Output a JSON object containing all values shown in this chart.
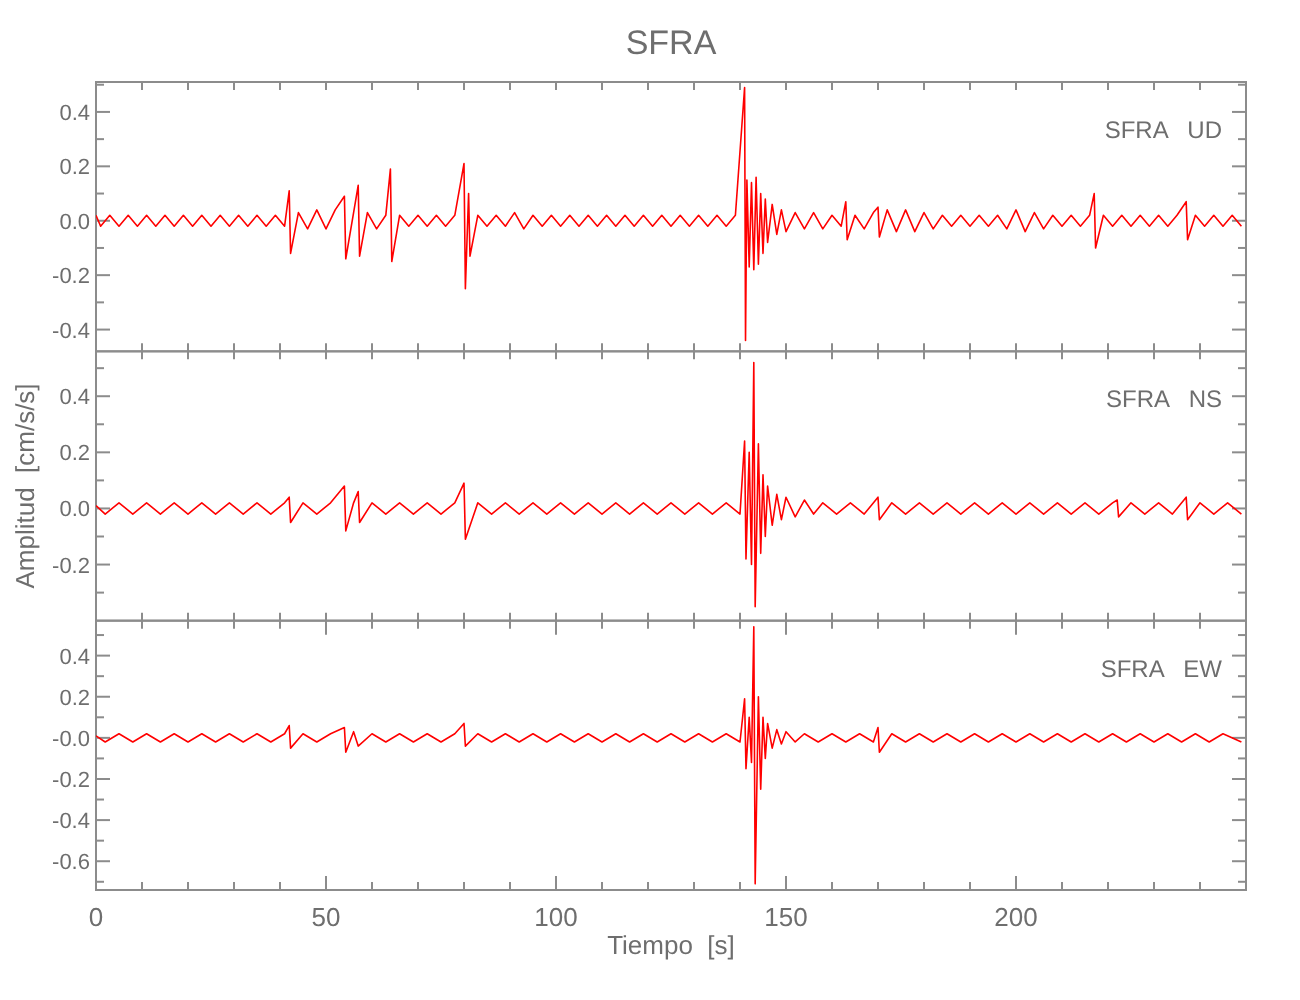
{
  "chart_data": [
    {
      "type": "line",
      "title": "SFRA",
      "annotations": [
        "SFRA   UD"
      ],
      "tick_labels": "y",
      "xlim": [
        0,
        250
      ],
      "ylim": [
        -0.48,
        0.51
      ],
      "xticks": [
        {
          "value": 0,
          "label": null
        },
        {
          "value": 10,
          "label": null
        },
        {
          "value": 20,
          "label": null
        },
        {
          "value": 30,
          "label": null
        },
        {
          "value": 40,
          "label": null
        },
        {
          "value": 50,
          "label": null
        },
        {
          "value": 60,
          "label": null
        },
        {
          "value": 70,
          "label": null
        },
        {
          "value": 80,
          "label": null
        },
        {
          "value": 90,
          "label": null
        },
        {
          "value": 100,
          "label": null
        },
        {
          "value": 110,
          "label": null
        },
        {
          "value": 120,
          "label": null
        },
        {
          "value": 130,
          "label": null
        },
        {
          "value": 140,
          "label": null
        },
        {
          "value": 150,
          "label": null
        },
        {
          "value": 160,
          "label": null
        },
        {
          "value": 170,
          "label": null
        },
        {
          "value": 180,
          "label": null
        },
        {
          "value": 190,
          "label": null
        },
        {
          "value": 200,
          "label": null
        },
        {
          "value": 210,
          "label": null
        },
        {
          "value": 220,
          "label": null
        },
        {
          "value": 230,
          "label": null
        },
        {
          "value": 240,
          "label": null
        }
      ],
      "yticks": [
        {
          "value": -0.4,
          "label": "-0.4"
        },
        {
          "value": -0.3,
          "label": null
        },
        {
          "value": -0.2,
          "label": "-0.2"
        },
        {
          "value": -0.1,
          "label": null
        },
        {
          "value": 0,
          "label": "0.0"
        },
        {
          "value": 0.1,
          "label": null
        },
        {
          "value": 0.2,
          "label": "0.2"
        },
        {
          "value": 0.3,
          "label": null
        },
        {
          "value": 0.4,
          "label": "0.4"
        },
        {
          "value": 0.5,
          "label": null
        }
      ],
      "x": [
        0,
        1,
        3,
        5,
        7,
        9,
        11,
        13,
        15,
        17,
        19,
        21,
        23,
        25,
        27,
        29,
        31,
        33,
        35,
        37,
        39,
        41,
        42,
        42.3,
        44,
        46,
        48,
        50,
        52,
        54,
        54.3,
        56,
        57,
        57.3,
        59,
        61,
        63,
        64,
        64.3,
        66,
        68,
        70,
        72,
        74,
        76,
        78,
        80,
        80.3,
        81,
        81.3,
        83,
        85,
        87,
        89,
        91,
        93,
        95,
        97,
        99,
        101,
        103,
        105,
        107,
        109,
        111,
        113,
        115,
        117,
        119,
        121,
        123,
        125,
        127,
        129,
        131,
        133,
        135,
        137,
        139,
        141,
        141.2,
        141.5,
        142,
        142.5,
        143,
        143.5,
        144,
        144.5,
        145,
        145.5,
        146,
        147,
        148,
        149,
        150,
        152,
        154,
        156,
        158,
        160,
        162,
        163,
        163.3,
        165,
        167,
        169,
        170,
        170.3,
        172,
        174,
        176,
        178,
        180,
        182,
        184,
        186,
        188,
        190,
        192,
        194,
        196,
        198,
        200,
        202,
        204,
        206,
        208,
        210,
        212,
        214,
        216,
        217,
        217.3,
        219,
        221,
        223,
        225,
        227,
        229,
        231,
        233,
        235,
        237,
        237.3,
        239,
        241,
        243,
        245,
        247,
        249
      ],
      "series": [
        {
          "color": "#ff0000",
          "values": [
            0.02,
            -0.02,
            0.02,
            -0.02,
            0.02,
            -0.02,
            0.02,
            -0.02,
            0.02,
            -0.02,
            0.02,
            -0.02,
            0.02,
            -0.02,
            0.02,
            -0.02,
            0.02,
            -0.02,
            0.02,
            -0.02,
            0.02,
            -0.02,
            0.11,
            -0.12,
            0.03,
            -0.03,
            0.04,
            -0.03,
            0.04,
            0.09,
            -0.14,
            0.03,
            0.13,
            -0.13,
            0.03,
            -0.03,
            0.02,
            0.19,
            -0.15,
            0.02,
            -0.02,
            0.02,
            -0.02,
            0.02,
            -0.02,
            0.02,
            0.21,
            -0.25,
            0.1,
            -0.13,
            0.02,
            -0.02,
            0.02,
            -0.02,
            0.03,
            -0.03,
            0.02,
            -0.02,
            0.02,
            -0.02,
            0.02,
            -0.02,
            0.02,
            -0.02,
            0.02,
            -0.02,
            0.02,
            -0.02,
            0.02,
            -0.02,
            0.02,
            -0.02,
            0.02,
            -0.02,
            0.02,
            -0.02,
            0.02,
            -0.02,
            0.02,
            0.49,
            -0.44,
            0.15,
            -0.17,
            0.14,
            -0.18,
            0.16,
            -0.16,
            0.1,
            -0.12,
            0.08,
            -0.08,
            0.06,
            -0.05,
            0.04,
            -0.04,
            0.03,
            -0.03,
            0.03,
            -0.03,
            0.02,
            -0.02,
            0.07,
            -0.07,
            0.02,
            -0.03,
            0.03,
            0.05,
            -0.06,
            0.04,
            -0.04,
            0.04,
            -0.04,
            0.03,
            -0.03,
            0.02,
            -0.02,
            0.02,
            -0.02,
            0.02,
            -0.02,
            0.02,
            -0.03,
            0.04,
            -0.04,
            0.03,
            -0.03,
            0.02,
            -0.02,
            0.02,
            -0.02,
            0.02,
            0.1,
            -0.1,
            0.02,
            -0.02,
            0.02,
            -0.02,
            0.02,
            -0.02,
            0.02,
            -0.02,
            0.02,
            0.07,
            -0.07,
            0.02,
            -0.02,
            0.02,
            -0.02,
            0.02,
            -0.02
          ]
        }
      ]
    },
    {
      "type": "line",
      "ylabel": "Amplitud  [cm/s/s]",
      "annotations": [
        "SFRA   NS"
      ],
      "tick_labels": "y",
      "xlim": [
        0,
        250
      ],
      "ylim": [
        -0.4,
        0.56
      ],
      "xticks": [
        {
          "value": 0,
          "label": null
        },
        {
          "value": 10,
          "label": null
        },
        {
          "value": 20,
          "label": null
        },
        {
          "value": 30,
          "label": null
        },
        {
          "value": 40,
          "label": null
        },
        {
          "value": 50,
          "label": null
        },
        {
          "value": 60,
          "label": null
        },
        {
          "value": 70,
          "label": null
        },
        {
          "value": 80,
          "label": null
        },
        {
          "value": 90,
          "label": null
        },
        {
          "value": 100,
          "label": null
        },
        {
          "value": 110,
          "label": null
        },
        {
          "value": 120,
          "label": null
        },
        {
          "value": 130,
          "label": null
        },
        {
          "value": 140,
          "label": null
        },
        {
          "value": 150,
          "label": null
        },
        {
          "value": 160,
          "label": null
        },
        {
          "value": 170,
          "label": null
        },
        {
          "value": 180,
          "label": null
        },
        {
          "value": 190,
          "label": null
        },
        {
          "value": 200,
          "label": null
        },
        {
          "value": 210,
          "label": null
        },
        {
          "value": 220,
          "label": null
        },
        {
          "value": 230,
          "label": null
        },
        {
          "value": 240,
          "label": null
        }
      ],
      "yticks": [
        {
          "value": -0.3,
          "label": null
        },
        {
          "value": -0.2,
          "label": "-0.2"
        },
        {
          "value": -0.1,
          "label": null
        },
        {
          "value": 0,
          "label": "0.0"
        },
        {
          "value": 0.1,
          "label": null
        },
        {
          "value": 0.2,
          "label": "0.2"
        },
        {
          "value": 0.3,
          "label": null
        },
        {
          "value": 0.4,
          "label": "0.4"
        },
        {
          "value": 0.5,
          "label": null
        }
      ],
      "x": [
        0,
        2,
        5,
        8,
        11,
        14,
        17,
        20,
        23,
        26,
        29,
        32,
        35,
        38,
        41,
        42,
        42.3,
        45,
        48,
        51,
        54,
        54.3,
        56,
        57,
        57.3,
        60,
        63,
        66,
        69,
        72,
        75,
        78,
        80,
        80.3,
        83,
        86,
        89,
        92,
        95,
        98,
        101,
        104,
        107,
        110,
        113,
        116,
        119,
        122,
        125,
        128,
        131,
        134,
        137,
        140,
        141,
        141.3,
        142,
        142.5,
        143,
        143.3,
        144,
        144.5,
        145,
        145.5,
        146,
        147,
        148,
        149,
        150,
        152,
        154,
        156,
        158,
        161,
        164,
        167,
        170,
        170.3,
        173,
        176,
        179,
        182,
        185,
        188,
        191,
        194,
        197,
        200,
        203,
        206,
        209,
        212,
        215,
        218,
        221,
        222,
        222.3,
        225,
        228,
        231,
        234,
        237,
        237.3,
        240,
        243,
        246,
        249
      ],
      "series": [
        {
          "color": "#ff0000",
          "values": [
            0.01,
            -0.02,
            0.02,
            -0.02,
            0.02,
            -0.02,
            0.02,
            -0.02,
            0.02,
            -0.02,
            0.02,
            -0.02,
            0.02,
            -0.02,
            0.02,
            0.04,
            -0.05,
            0.02,
            -0.02,
            0.02,
            0.08,
            -0.08,
            0.02,
            0.06,
            -0.05,
            0.02,
            -0.02,
            0.02,
            -0.02,
            0.02,
            -0.02,
            0.02,
            0.09,
            -0.11,
            0.02,
            -0.02,
            0.02,
            -0.02,
            0.02,
            -0.02,
            0.02,
            -0.02,
            0.02,
            -0.02,
            0.02,
            -0.02,
            0.02,
            -0.02,
            0.02,
            -0.02,
            0.02,
            -0.02,
            0.02,
            -0.02,
            0.24,
            -0.18,
            0.2,
            -0.2,
            0.52,
            -0.35,
            0.23,
            -0.16,
            0.12,
            -0.1,
            0.08,
            -0.06,
            0.05,
            -0.04,
            0.04,
            -0.03,
            0.03,
            -0.02,
            0.02,
            -0.02,
            0.02,
            -0.02,
            0.04,
            -0.04,
            0.02,
            -0.02,
            0.02,
            -0.02,
            0.02,
            -0.02,
            0.02,
            -0.02,
            0.02,
            -0.02,
            0.02,
            -0.02,
            0.02,
            -0.02,
            0.02,
            -0.02,
            0.02,
            0.03,
            -0.03,
            0.02,
            -0.02,
            0.02,
            -0.02,
            0.04,
            -0.04,
            0.02,
            -0.02,
            0.02,
            -0.02
          ]
        }
      ]
    },
    {
      "type": "line",
      "xlabel": "Tiempo  [s]",
      "annotations": [
        "SFRA   EW"
      ],
      "xlim": [
        0,
        250
      ],
      "ylim": [
        -0.74,
        0.57
      ],
      "xticks": [
        {
          "value": 0,
          "label": "0"
        },
        {
          "value": 10,
          "label": null
        },
        {
          "value": 20,
          "label": null
        },
        {
          "value": 30,
          "label": null
        },
        {
          "value": 40,
          "label": null
        },
        {
          "value": 50,
          "label": "50"
        },
        {
          "value": 60,
          "label": null
        },
        {
          "value": 70,
          "label": null
        },
        {
          "value": 80,
          "label": null
        },
        {
          "value": 90,
          "label": null
        },
        {
          "value": 100,
          "label": "100"
        },
        {
          "value": 110,
          "label": null
        },
        {
          "value": 120,
          "label": null
        },
        {
          "value": 130,
          "label": null
        },
        {
          "value": 140,
          "label": null
        },
        {
          "value": 150,
          "label": "150"
        },
        {
          "value": 160,
          "label": null
        },
        {
          "value": 170,
          "label": null
        },
        {
          "value": 180,
          "label": null
        },
        {
          "value": 190,
          "label": null
        },
        {
          "value": 200,
          "label": "200"
        },
        {
          "value": 210,
          "label": null
        },
        {
          "value": 220,
          "label": null
        },
        {
          "value": 230,
          "label": null
        },
        {
          "value": 240,
          "label": null
        }
      ],
      "yticks": [
        {
          "value": -0.7,
          "label": null
        },
        {
          "value": -0.6,
          "label": "-0.6"
        },
        {
          "value": -0.5,
          "label": null
        },
        {
          "value": -0.4,
          "label": "-0.4"
        },
        {
          "value": -0.3,
          "label": null
        },
        {
          "value": -0.2,
          "label": "-0.2"
        },
        {
          "value": -0.1,
          "label": null
        },
        {
          "value": 0,
          "label": "-0.0"
        },
        {
          "value": 0.1,
          "label": null
        },
        {
          "value": 0.2,
          "label": "0.2"
        },
        {
          "value": 0.3,
          "label": null
        },
        {
          "value": 0.4,
          "label": "0.4"
        },
        {
          "value": 0.5,
          "label": null
        }
      ],
      "x": [
        0,
        2,
        5,
        8,
        11,
        14,
        17,
        20,
        23,
        26,
        29,
        32,
        35,
        38,
        41,
        42,
        42.3,
        45,
        48,
        51,
        54,
        54.3,
        56,
        57,
        60,
        63,
        66,
        69,
        72,
        75,
        78,
        80,
        80.3,
        83,
        86,
        89,
        92,
        95,
        98,
        101,
        104,
        107,
        110,
        113,
        116,
        119,
        122,
        125,
        128,
        131,
        134,
        137,
        140,
        141,
        141.3,
        142,
        142.5,
        143,
        143.3,
        144,
        144.5,
        145,
        145.5,
        146,
        147,
        148,
        149,
        150,
        152,
        154,
        157,
        160,
        163,
        166,
        169,
        170,
        170.3,
        173,
        176,
        179,
        182,
        185,
        188,
        191,
        194,
        197,
        200,
        203,
        206,
        209,
        212,
        215,
        218,
        221,
        224,
        227,
        230,
        233,
        236,
        239,
        242,
        245,
        249
      ],
      "series": [
        {
          "color": "#ff0000",
          "values": [
            0.01,
            -0.02,
            0.02,
            -0.02,
            0.02,
            -0.02,
            0.02,
            -0.02,
            0.02,
            -0.02,
            0.02,
            -0.02,
            0.02,
            -0.02,
            0.02,
            0.06,
            -0.05,
            0.02,
            -0.02,
            0.02,
            0.05,
            -0.07,
            0.03,
            -0.04,
            0.02,
            -0.02,
            0.02,
            -0.02,
            0.02,
            -0.02,
            0.02,
            0.07,
            -0.04,
            0.02,
            -0.02,
            0.02,
            -0.02,
            0.02,
            -0.02,
            0.02,
            -0.02,
            0.02,
            -0.02,
            0.02,
            -0.02,
            0.02,
            -0.02,
            0.02,
            -0.02,
            0.02,
            -0.02,
            0.02,
            -0.02,
            0.19,
            -0.15,
            0.1,
            -0.12,
            0.54,
            -0.71,
            0.2,
            -0.25,
            0.1,
            -0.1,
            0.07,
            -0.05,
            0.04,
            -0.03,
            0.03,
            -0.02,
            0.02,
            -0.02,
            0.02,
            -0.02,
            0.02,
            -0.02,
            0.05,
            -0.07,
            0.02,
            -0.02,
            0.02,
            -0.02,
            0.02,
            -0.02,
            0.02,
            -0.02,
            0.02,
            -0.02,
            0.02,
            -0.02,
            0.02,
            -0.02,
            0.02,
            -0.02,
            0.02,
            -0.02,
            0.02,
            -0.02,
            0.02,
            -0.02,
            0.02,
            -0.02,
            0.02,
            -0.02
          ]
        }
      ]
    }
  ]
}
